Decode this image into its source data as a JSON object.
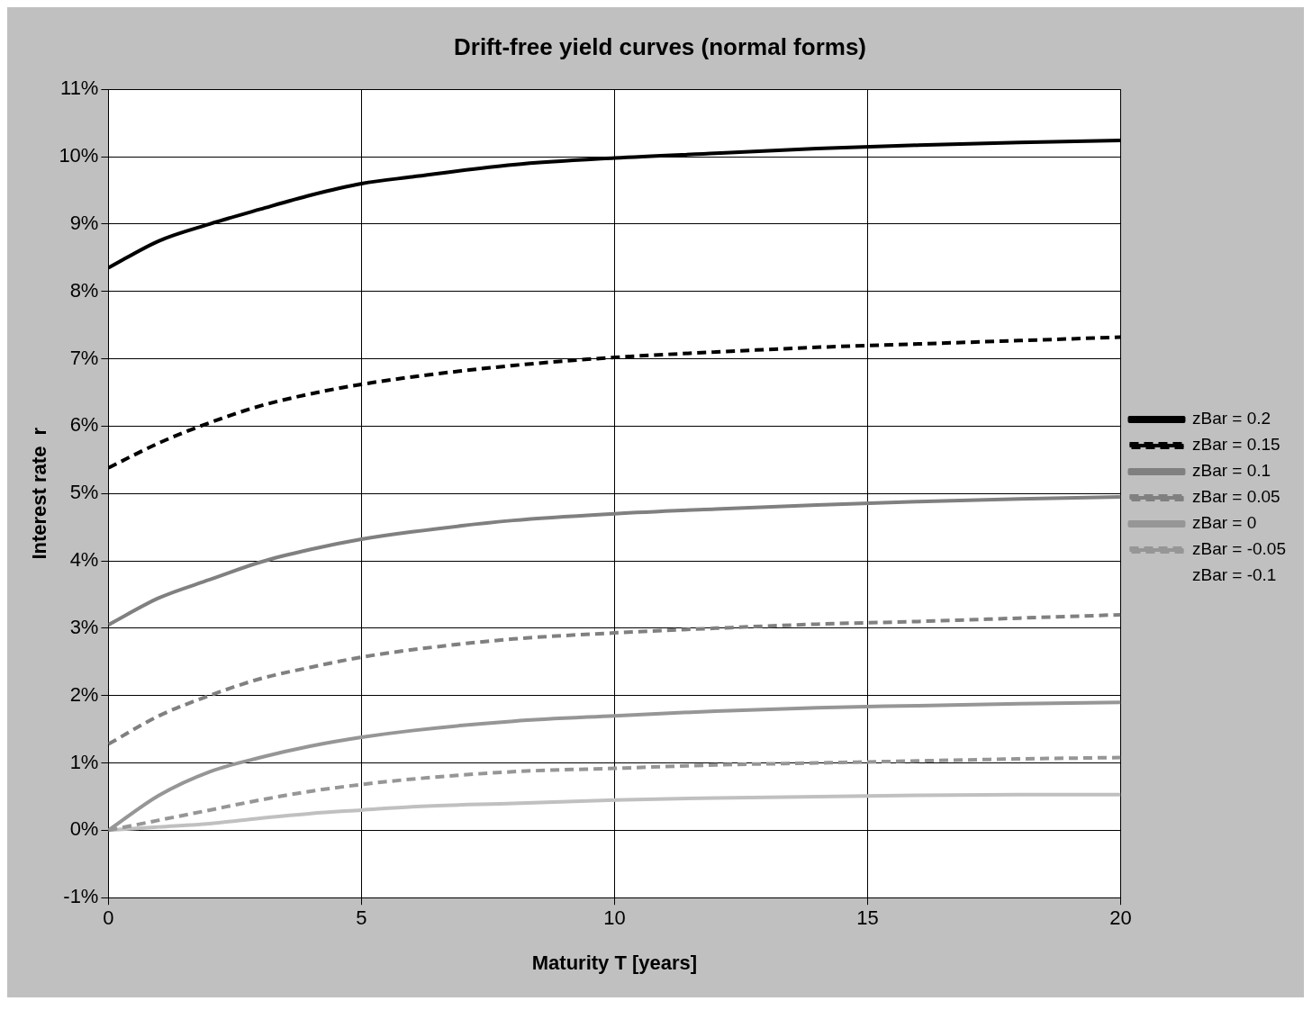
{
  "chart_data": {
    "type": "line",
    "title": "Drift-free yield curves (normal forms)",
    "xlabel": "Maturity T [years]",
    "ylabel": "Interest rate  r",
    "x": [
      0,
      1,
      2,
      3,
      4,
      5,
      6,
      8,
      10,
      12,
      14,
      16,
      18,
      20
    ],
    "series": [
      {
        "name": "zBar = 0.2",
        "color": "#000000",
        "line_style": "solid",
        "values": [
          8.35,
          8.75,
          9.0,
          9.22,
          9.43,
          9.6,
          9.7,
          9.88,
          9.98,
          10.05,
          10.12,
          10.17,
          10.21,
          10.24
        ]
      },
      {
        "name": "zBar = 0.15",
        "color": "#000000",
        "line_style": "dashed",
        "values": [
          5.38,
          5.75,
          6.05,
          6.3,
          6.48,
          6.62,
          6.73,
          6.9,
          7.02,
          7.1,
          7.17,
          7.22,
          7.27,
          7.32
        ]
      },
      {
        "name": "zBar = 0.1",
        "color": "#808080",
        "line_style": "solid",
        "values": [
          3.05,
          3.45,
          3.72,
          3.98,
          4.17,
          4.32,
          4.43,
          4.6,
          4.7,
          4.77,
          4.83,
          4.88,
          4.92,
          4.95
        ]
      },
      {
        "name": "zBar = 0.05",
        "color": "#808080",
        "line_style": "dashed",
        "values": [
          1.28,
          1.7,
          2.0,
          2.25,
          2.42,
          2.57,
          2.68,
          2.84,
          2.93,
          3.0,
          3.06,
          3.1,
          3.15,
          3.2
        ]
      },
      {
        "name": "zBar = 0",
        "color": "#969696",
        "line_style": "solid",
        "values": [
          0,
          0.52,
          0.87,
          1.08,
          1.25,
          1.38,
          1.48,
          1.62,
          1.7,
          1.77,
          1.82,
          1.85,
          1.88,
          1.9
        ]
      },
      {
        "name": "zBar = -0.05",
        "color": "#969696",
        "line_style": "dashed",
        "values": [
          0,
          0.15,
          0.3,
          0.45,
          0.58,
          0.68,
          0.76,
          0.87,
          0.92,
          0.97,
          1.0,
          1.03,
          1.06,
          1.08
        ]
      },
      {
        "name": "zBar = -0.1",
        "color": "#c0c0c0",
        "line_style": "solid",
        "values": [
          0,
          0.05,
          0.1,
          0.18,
          0.25,
          0.3,
          0.35,
          0.4,
          0.45,
          0.48,
          0.5,
          0.52,
          0.53,
          0.53
        ]
      }
    ],
    "xlim": [
      0,
      20
    ],
    "xticks": [
      0,
      5,
      10,
      15,
      20
    ],
    "ylim": [
      -1,
      11
    ],
    "yticks": [
      {
        "value": -1,
        "label": "-1%"
      },
      {
        "value": 0,
        "label": "0%"
      },
      {
        "value": 1,
        "label": "1%"
      },
      {
        "value": 2,
        "label": "2%"
      },
      {
        "value": 3,
        "label": "3%"
      },
      {
        "value": 4,
        "label": "4%"
      },
      {
        "value": 5,
        "label": "5%"
      },
      {
        "value": 6,
        "label": "6%"
      },
      {
        "value": 7,
        "label": "7%"
      },
      {
        "value": 8,
        "label": "8%"
      },
      {
        "value": 9,
        "label": "9%"
      },
      {
        "value": 10,
        "label": "10%"
      },
      {
        "value": 11,
        "label": "11%"
      }
    ],
    "grid": true,
    "legend": "right"
  }
}
